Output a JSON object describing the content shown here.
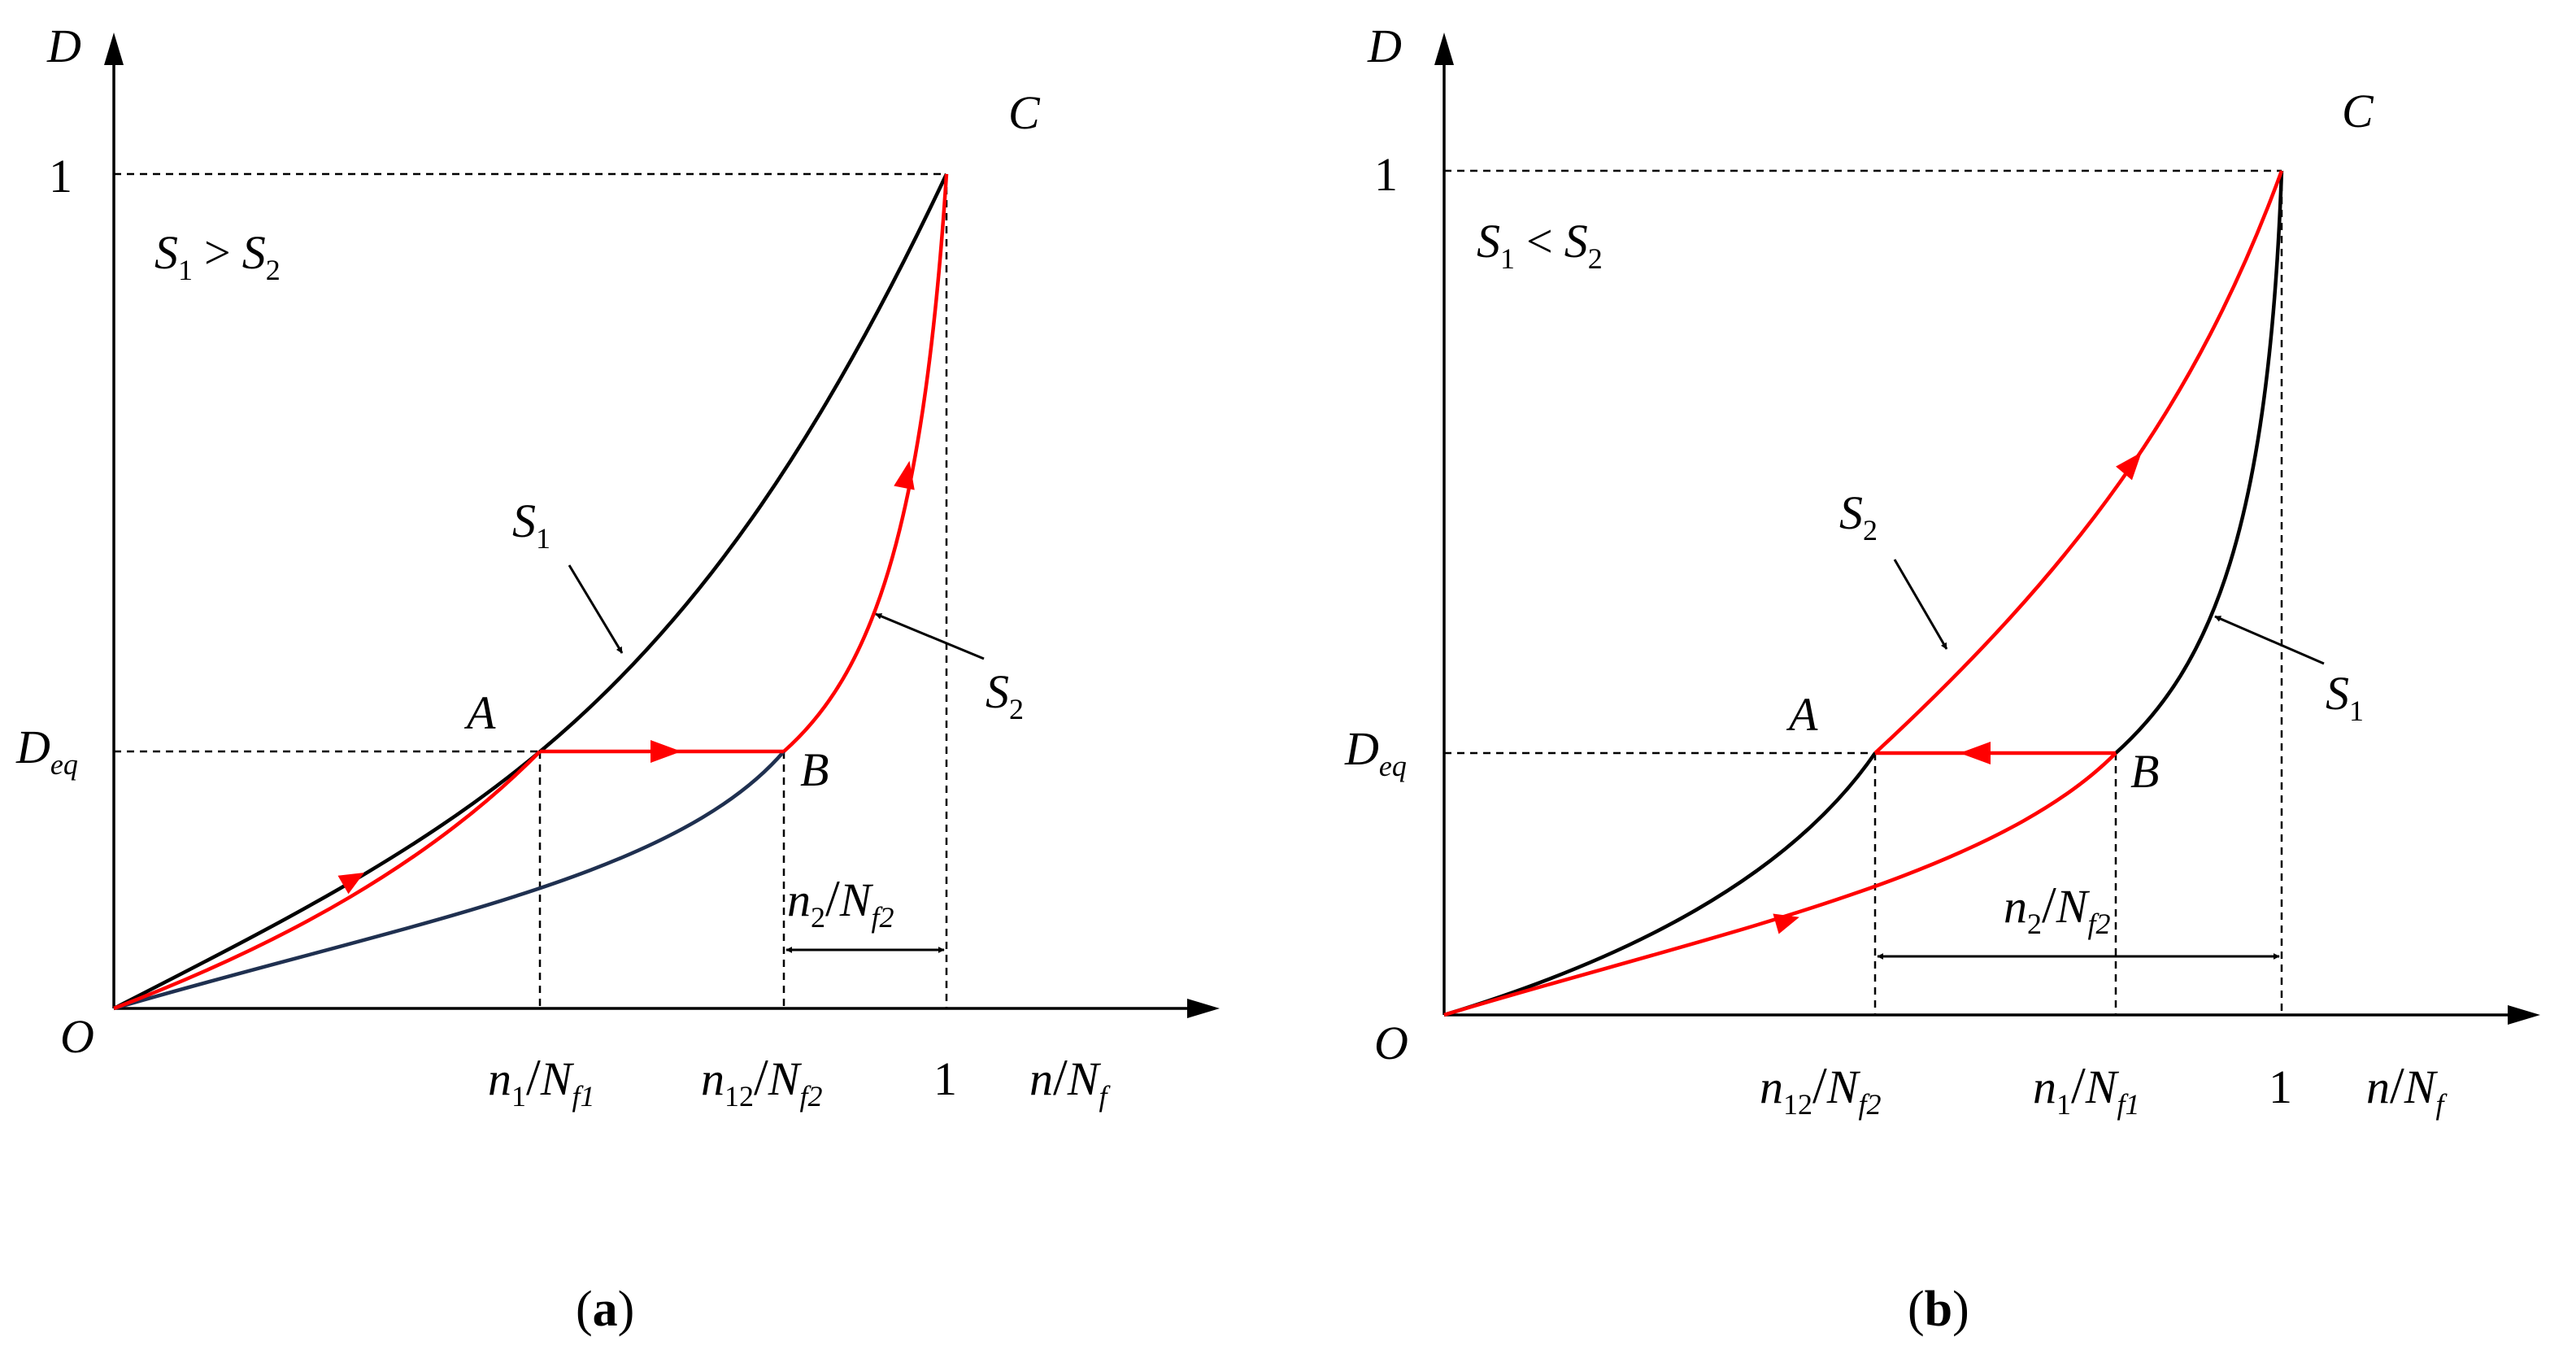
{
  "colors": {
    "axis": "#000000",
    "black_curve": "#000000",
    "red_curve": "#ff0000",
    "navy_curve": "#1f3050",
    "dashed": "#000000"
  },
  "panel_a": {
    "caption_open": "(",
    "caption_letter": "a",
    "caption_close": ")",
    "y_axis": "D",
    "x_axis_n": "n",
    "x_axis_N": "N",
    "x_axis_sub": "f",
    "one_y": "1",
    "one_x": "1",
    "origin": "O",
    "deq_main": "D",
    "deq_sub": "eq",
    "point_a": "A",
    "point_b": "B",
    "point_c": "C",
    "relation_s": "S",
    "relation_sub1": "1",
    "relation_op": ">",
    "relation_sub2": "2",
    "curve_s1": "S",
    "curve_s1_sub": "1",
    "curve_s2": "S",
    "curve_s2_sub": "2",
    "tick1_n": "n",
    "tick1_n_sub": "1",
    "tick1_N": "N",
    "tick1_N_sub": "f1",
    "tick2_n": "n",
    "tick2_n_sub": "12",
    "tick2_N": "N",
    "tick2_N_sub": "f2",
    "span_n": "n",
    "span_n_sub": "2",
    "span_N": "N",
    "span_N_sub": "f2"
  },
  "panel_b": {
    "caption_open": "(",
    "caption_letter": "b",
    "caption_close": ")",
    "y_axis": "D",
    "x_axis_n": "n",
    "x_axis_N": "N",
    "x_axis_sub": "f",
    "one_y": "1",
    "one_x": "1",
    "origin": "O",
    "deq_main": "D",
    "deq_sub": "eq",
    "point_a": "A",
    "point_b": "B",
    "point_c": "C",
    "relation_s": "S",
    "relation_sub1": "1",
    "relation_op": "<",
    "relation_sub2": "2",
    "curve_s1": "S",
    "curve_s1_sub": "1",
    "curve_s2": "S",
    "curve_s2_sub": "2",
    "tick1_n": "n",
    "tick1_n_sub": "12",
    "tick1_N": "N",
    "tick1_N_sub": "f2",
    "tick2_n": "n",
    "tick2_n_sub": "1",
    "tick2_N": "N",
    "tick2_N_sub": "f1",
    "span_n": "n",
    "span_n_sub": "2",
    "span_N": "N",
    "span_N_sub": "f2"
  }
}
